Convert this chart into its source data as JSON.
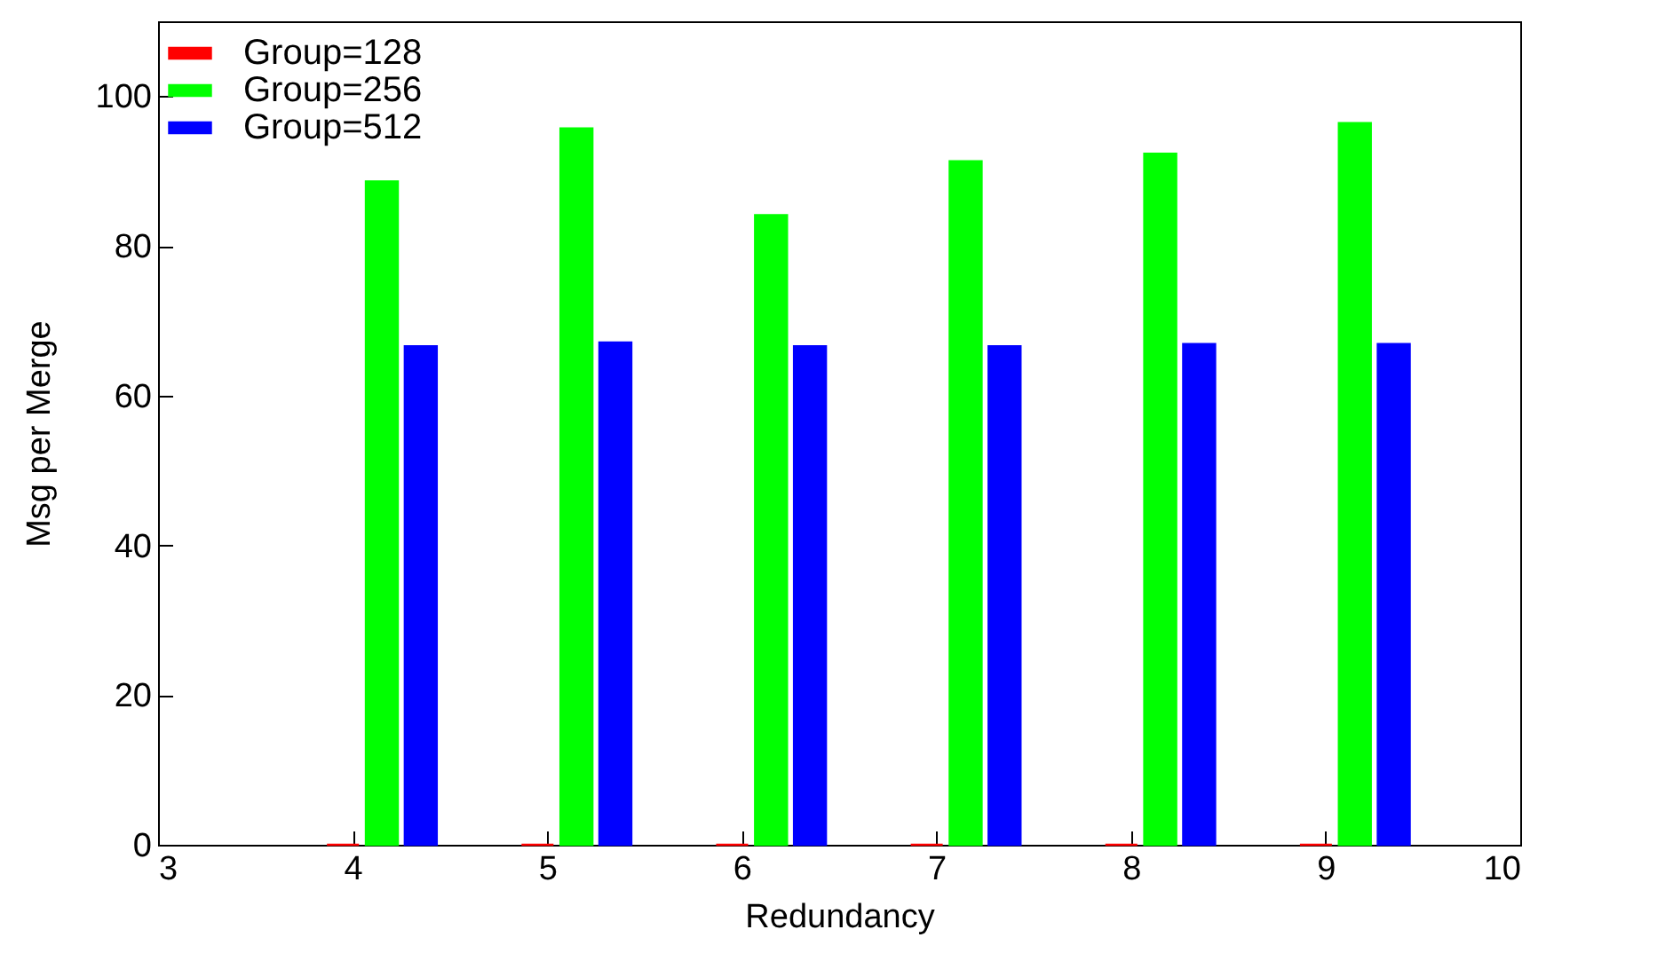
{
  "chart_data": {
    "type": "bar",
    "xlabel": "Redundancy",
    "ylabel": "Msg per Merge",
    "xlim": [
      3,
      10
    ],
    "xticks": [
      3,
      4,
      5,
      6,
      7,
      8,
      9,
      10
    ],
    "ylim": [
      0,
      110
    ],
    "yticks": [
      0,
      20,
      40,
      60,
      80,
      100
    ],
    "grid": false,
    "legend": "top left",
    "series": [
      {
        "name": "Group=128",
        "color": "#ff0000",
        "x": [
          3.95,
          4.95,
          5.95,
          6.95,
          7.95,
          8.95
        ],
        "values": [
          0,
          0,
          0,
          0,
          0,
          0
        ]
      },
      {
        "name": "Group=256",
        "color": "#00ff00",
        "x": [
          4.15,
          5.15,
          6.15,
          7.15,
          8.15,
          9.15
        ],
        "values": [
          88.6,
          95.7,
          84.1,
          91.3,
          92.3,
          96.4
        ]
      },
      {
        "name": "Group=512",
        "color": "#0000ff",
        "x": [
          4.35,
          5.35,
          6.35,
          7.35,
          8.35,
          9.35
        ],
        "values": [
          66.6,
          67.1,
          66.6,
          66.6,
          66.9,
          66.9
        ]
      }
    ]
  }
}
